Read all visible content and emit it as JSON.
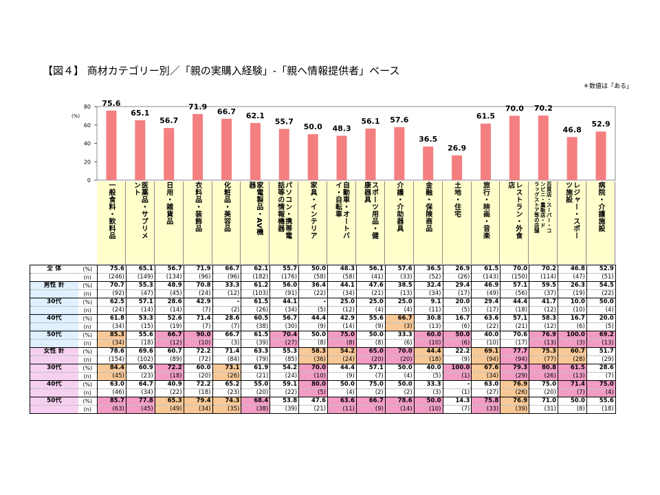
{
  "title": "【図４】 商材カテゴリー別／「親の実購入経験」-「親へ情報提供者」ベース",
  "note": "＊数値は「ある」",
  "colors": {
    "bar": "#f47f80",
    "label_bg": "#ffffcc",
    "highlight_orange": "#f8c896",
    "highlight_pink": "#f29cc4",
    "male_label": "#e0f0ff",
    "female_label": "#f5d0f0"
  },
  "chart_data": {
    "type": "bar",
    "y_unit": "(%)",
    "ylim": [
      0,
      80
    ],
    "yticks": [
      "0",
      "20",
      "40",
      "60",
      "80"
    ],
    "categories": [
      [
        "一般食料・飲料品"
      ],
      [
        "医薬品・サプリメ",
        "ント"
      ],
      [
        "日用・雑貨品"
      ],
      [
        "衣料品・装飾品"
      ],
      [
        "化粧品・美容品"
      ],
      [
        "家電製品・AV機",
        "器"
      ],
      [
        "パソコン・携帯電",
        "話等の情報機器"
      ],
      [
        "家具・インテリア"
      ],
      [
        "自動車・オートバ",
        "イ・自転車"
      ],
      [
        "スポーツ用品・健",
        "康器具"
      ],
      [
        "介護・介助器具"
      ],
      [
        "金融・保険商品"
      ],
      [
        "土地・住宅"
      ],
      [
        "旅行・映画・音楽"
      ],
      [
        "レストラン・外食",
        "店"
      ],
      [
        "百貨店・スーパー・コ",
        "ンビニ・量販店・ド",
        "ラッグストア等の店舗"
      ],
      [
        "レジャー・スポー",
        "ツ施設"
      ],
      [
        "病院・介護施設"
      ]
    ],
    "values": [
      75.6,
      65.1,
      56.7,
      71.9,
      66.7,
      62.1,
      55.7,
      50.0,
      48.3,
      56.1,
      57.6,
      36.5,
      26.9,
      61.5,
      70.0,
      70.2,
      46.8,
      52.9
    ],
    "value_labels": [
      "75.6",
      "65.1",
      "56.7",
      "71.9",
      "66.7",
      "62.1",
      "55.7",
      "50.0",
      "48.3",
      "56.1",
      "57.6",
      "36.5",
      "26.9",
      "61.5",
      "70.0",
      "70.2",
      "46.8",
      "52.9"
    ]
  },
  "table": {
    "groups": [
      {
        "key": "total",
        "rows": [
          {
            "label": "全 体",
            "pct": [
              "75.6",
              "65.1",
              "56.7",
              "71.9",
              "66.7",
              "62.1",
              "55.7",
              "50.0",
              "48.3",
              "56.1",
              "57.6",
              "36.5",
              "26.9",
              "61.5",
              "70.0",
              "70.2",
              "46.8",
              "52.9"
            ],
            "n": [
              "(246)",
              "(149)",
              "(134)",
              "(96)",
              "(96)",
              "(182)",
              "(176)",
              "(58)",
              "(58)",
              "(41)",
              "(33)",
              "(52)",
              "(26)",
              "(143)",
              "(150)",
              "(114)",
              "(47)",
              "(51)"
            ],
            "hl": {}
          }
        ]
      },
      {
        "key": "male",
        "rows": [
          {
            "label": "男性 計",
            "pct": [
              "70.7",
              "55.3",
              "48.9",
              "70.8",
              "33.3",
              "61.2",
              "56.0",
              "36.4",
              "44.1",
              "47.6",
              "38.5",
              "32.4",
              "29.4",
              "46.9",
              "57.1",
              "59.5",
              "26.3",
              "54.5"
            ],
            "n": [
              "(92)",
              "(47)",
              "(45)",
              "(24)",
              "(12)",
              "(103)",
              "(91)",
              "(22)",
              "(34)",
              "(21)",
              "(13)",
              "(34)",
              "(17)",
              "(49)",
              "(56)",
              "(37)",
              "(19)",
              "(22)"
            ],
            "hl": {}
          },
          {
            "label": "30代",
            "pct": [
              "62.5",
              "57.1",
              "28.6",
              "42.9",
              "-",
              "61.5",
              "44.1",
              "-",
              "25.0",
              "25.0",
              "25.0",
              "9.1",
              "20.0",
              "29.4",
              "44.4",
              "41.7",
              "10.0",
              "50.0"
            ],
            "n": [
              "(24)",
              "(14)",
              "(14)",
              "(7)",
              "(2)",
              "(26)",
              "(34)",
              "(5)",
              "(12)",
              "(4)",
              "(4)",
              "(11)",
              "(5)",
              "(17)",
              "(18)",
              "(12)",
              "(10)",
              "(4)"
            ],
            "hl": {}
          },
          {
            "label": "40代",
            "pct": [
              "61.8",
              "53.3",
              "52.6",
              "71.4",
              "28.6",
              "60.5",
              "56.7",
              "44.4",
              "42.9",
              "55.6",
              "66.7",
              "30.8",
              "16.7",
              "63.6",
              "57.1",
              "58.3",
              "16.7",
              "20.0"
            ],
            "n": [
              "(34)",
              "(15)",
              "(19)",
              "(7)",
              "(7)",
              "(38)",
              "(30)",
              "(9)",
              "(14)",
              "(9)",
              "(3)",
              "(13)",
              "(6)",
              "(22)",
              "(21)",
              "(12)",
              "(6)",
              "(5)"
            ],
            "hl": {
              "10": "o"
            }
          },
          {
            "label": "50代",
            "pct": [
              "85.3",
              "55.6",
              "66.7",
              "90.0",
              "66.7",
              "61.5",
              "70.4",
              "50.0",
              "75.0",
              "50.0",
              "33.3",
              "60.0",
              "50.0",
              "40.0",
              "70.6",
              "76.9",
              "100.0",
              "69.2"
            ],
            "n": [
              "(34)",
              "(18)",
              "(12)",
              "(10)",
              "(3)",
              "(39)",
              "(27)",
              "(8)",
              "(8)",
              "(8)",
              "(6)",
              "(10)",
              "(6)",
              "(10)",
              "(17)",
              "(13)",
              "(3)",
              "(13)"
            ],
            "hl": {
              "0": "o",
              "2": "p",
              "3": "p",
              "6": "p",
              "8": "p",
              "11": "p",
              "12": "p",
              "15": "p",
              "16": "p",
              "17": "p"
            }
          }
        ]
      },
      {
        "key": "female",
        "rows": [
          {
            "label": "女性 計",
            "pct": [
              "78.6",
              "69.6",
              "60.7",
              "72.2",
              "71.4",
              "63.3",
              "55.3",
              "58.3",
              "54.2",
              "65.0",
              "70.0",
              "44.4",
              "22.2",
              "69.1",
              "77.7",
              "75.3",
              "60.7",
              "51.7"
            ],
            "n": [
              "(154)",
              "(102)",
              "(89)",
              "(72)",
              "(84)",
              "(79)",
              "(85)",
              "(36)",
              "(24)",
              "(20)",
              "(20)",
              "(18)",
              "(9)",
              "(94)",
              "(94)",
              "(77)",
              "(28)",
              "(29)"
            ],
            "hl": {
              "7": "o",
              "8": "o",
              "9": "p",
              "10": "p",
              "11": "o",
              "13": "o",
              "14": "p",
              "15": "o",
              "16": "o"
            }
          },
          {
            "label": "30代",
            "pct": [
              "84.4",
              "60.9",
              "72.2",
              "60.0",
              "73.1",
              "61.9",
              "54.2",
              "70.0",
              "44.4",
              "57.1",
              "50.0",
              "40.0",
              "100.0",
              "67.6",
              "79.3",
              "80.8",
              "61.5",
              "28.6"
            ],
            "n": [
              "(45)",
              "(23)",
              "(18)",
              "(20)",
              "(26)",
              "(21)",
              "(24)",
              "(10)",
              "(9)",
              "(7)",
              "(4)",
              "(5)",
              "(1)",
              "(34)",
              "(29)",
              "(26)",
              "(13)",
              "(7)"
            ],
            "hl": {
              "0": "o",
              "2": "p",
              "4": "o",
              "7": "p",
              "12": "p",
              "13": "o",
              "14": "p",
              "15": "p",
              "16": "p"
            }
          },
          {
            "label": "40代",
            "pct": [
              "63.0",
              "64.7",
              "40.9",
              "72.2",
              "65.2",
              "55.0",
              "59.1",
              "80.0",
              "50.0",
              "75.0",
              "50.0",
              "33.3",
              "-",
              "63.0",
              "76.9",
              "75.0",
              "71.4",
              "75.0"
            ],
            "n": [
              "(46)",
              "(34)",
              "(22)",
              "(18)",
              "(23)",
              "(20)",
              "(22)",
              "(5)",
              "(4)",
              "(2)",
              "(2)",
              "(3)",
              "(1)",
              "(27)",
              "(26)",
              "(20)",
              "(7)",
              "(4)"
            ],
            "hl": {
              "7": "p",
              "14": "o",
              "16": "p",
              "17": "p"
            }
          },
          {
            "label": "50代",
            "pct": [
              "85.7",
              "77.8",
              "65.3",
              "79.4",
              "74.3",
              "68.4",
              "53.8",
              "47.6",
              "63.6",
              "66.7",
              "78.6",
              "50.0",
              "14.3",
              "75.8",
              "76.9",
              "71.0",
              "50.0",
              "55.6"
            ],
            "n": [
              "(63)",
              "(45)",
              "(49)",
              "(34)",
              "(35)",
              "(38)",
              "(39)",
              "(21)",
              "(11)",
              "(9)",
              "(14)",
              "(10)",
              "(7)",
              "(33)",
              "(39)",
              "(31)",
              "(8)",
              "(18)"
            ],
            "hl": {
              "0": "p",
              "1": "p",
              "2": "o",
              "3": "o",
              "4": "o",
              "5": "p",
              "8": "p",
              "9": "p",
              "10": "p",
              "11": "p",
              "13": "p",
              "14": "o"
            }
          }
        ]
      }
    ],
    "unit_pct": "(%)",
    "unit_n": "(n)"
  }
}
